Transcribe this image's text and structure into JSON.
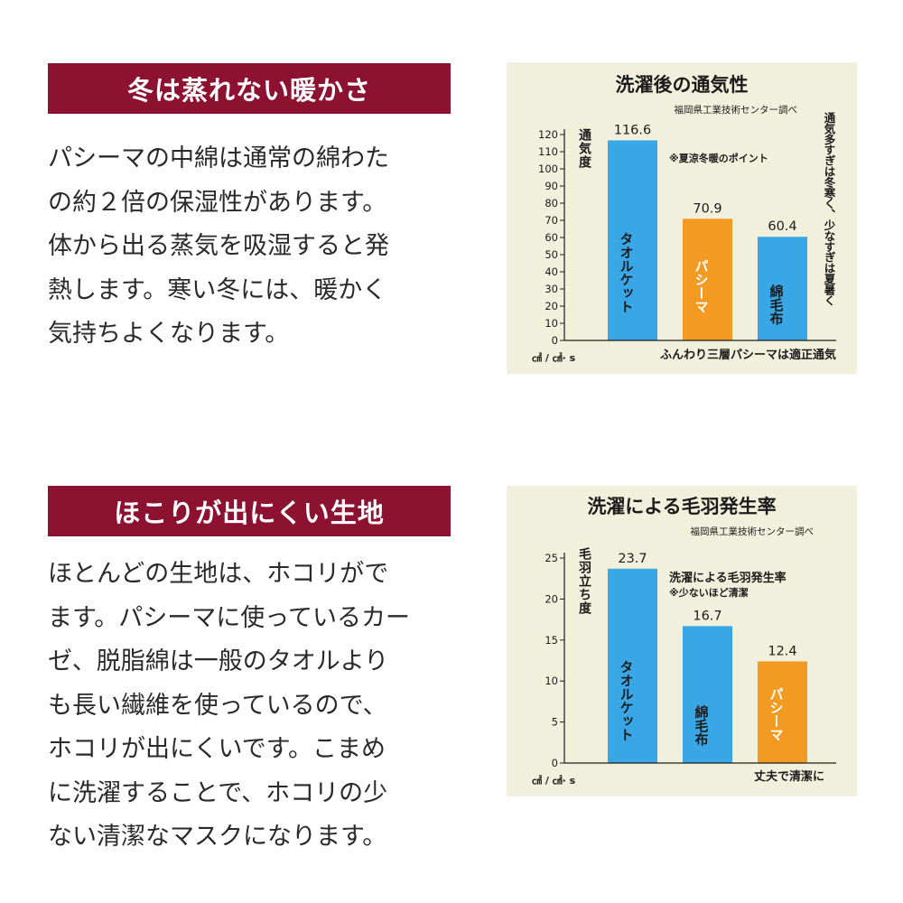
{
  "section1": {
    "heading": "冬は蒸れない暖かさ",
    "lines": [
      "パシーマの中綿は通常の綿わた",
      "の約２倍の保湿性があります。",
      "体から出る蒸気を吸湿すると発",
      "熱します。寒い冬には、暖かく",
      "気持ちよくなります。"
    ]
  },
  "section2": {
    "heading": "ほこりが出にくい生地",
    "lines": [
      "ほとんどの生地は、ホコリがで",
      "ます。パシーマに使っているカー",
      "ゼ、脱脂綿は一般のタオルより",
      "も長い繊維を使っているので、",
      "ホコリが出にくいです。こまめ",
      "に洗濯することで、ホコリの少",
      "ない清潔なマスクになります。"
    ]
  },
  "chart_data": [
    {
      "type": "bar",
      "title": "洗濯後の通気性",
      "source": "福岡県工業技術センター調べ",
      "ylabel": "通気度",
      "unit": "㎤ / ㎠· s",
      "ylim": [
        0,
        120
      ],
      "yticks": [
        0,
        10,
        20,
        30,
        40,
        50,
        60,
        70,
        80,
        90,
        100,
        110,
        120
      ],
      "categories": [
        "タオルケット",
        "パシーマ",
        "綿毛布"
      ],
      "values": [
        116.6,
        70.9,
        60.4
      ],
      "value_labels": [
        "116.6",
        "70.9",
        "60.4"
      ],
      "colors": [
        "#39a6e6",
        "#f39a22",
        "#39a6e6"
      ],
      "label_colors": [
        "#1c1c1c",
        "#ffffff",
        "#1c1c1c"
      ],
      "annotation": "※夏涼冬暖のポイント",
      "side_note": "通気多すぎは冬寒く、少なすぎは夏暑く",
      "bottom_note": "ふんわり三層パシーマは適正通気"
    },
    {
      "type": "bar",
      "title": "洗濯による毛羽発生率",
      "source": "福岡県工業技術センター調べ",
      "ylabel": "毛羽立ち度",
      "unit": "㎤ / ㎠· s",
      "ylim": [
        0,
        25
      ],
      "yticks": [
        0,
        5,
        10,
        15,
        20,
        25
      ],
      "categories": [
        "タオルケット",
        "綿毛布",
        "パシーマ"
      ],
      "values": [
        23.7,
        16.7,
        12.4
      ],
      "value_labels": [
        "23.7",
        "16.7",
        "12.4"
      ],
      "colors": [
        "#39a6e6",
        "#39a6e6",
        "#f39a22"
      ],
      "label_colors": [
        "#1c1c1c",
        "#1c1c1c",
        "#ffffff"
      ],
      "legend_title": "洗濯による毛羽発生率",
      "legend_note": "※少ないほど清潔",
      "bottom_note": "丈夫で清潔に"
    }
  ]
}
